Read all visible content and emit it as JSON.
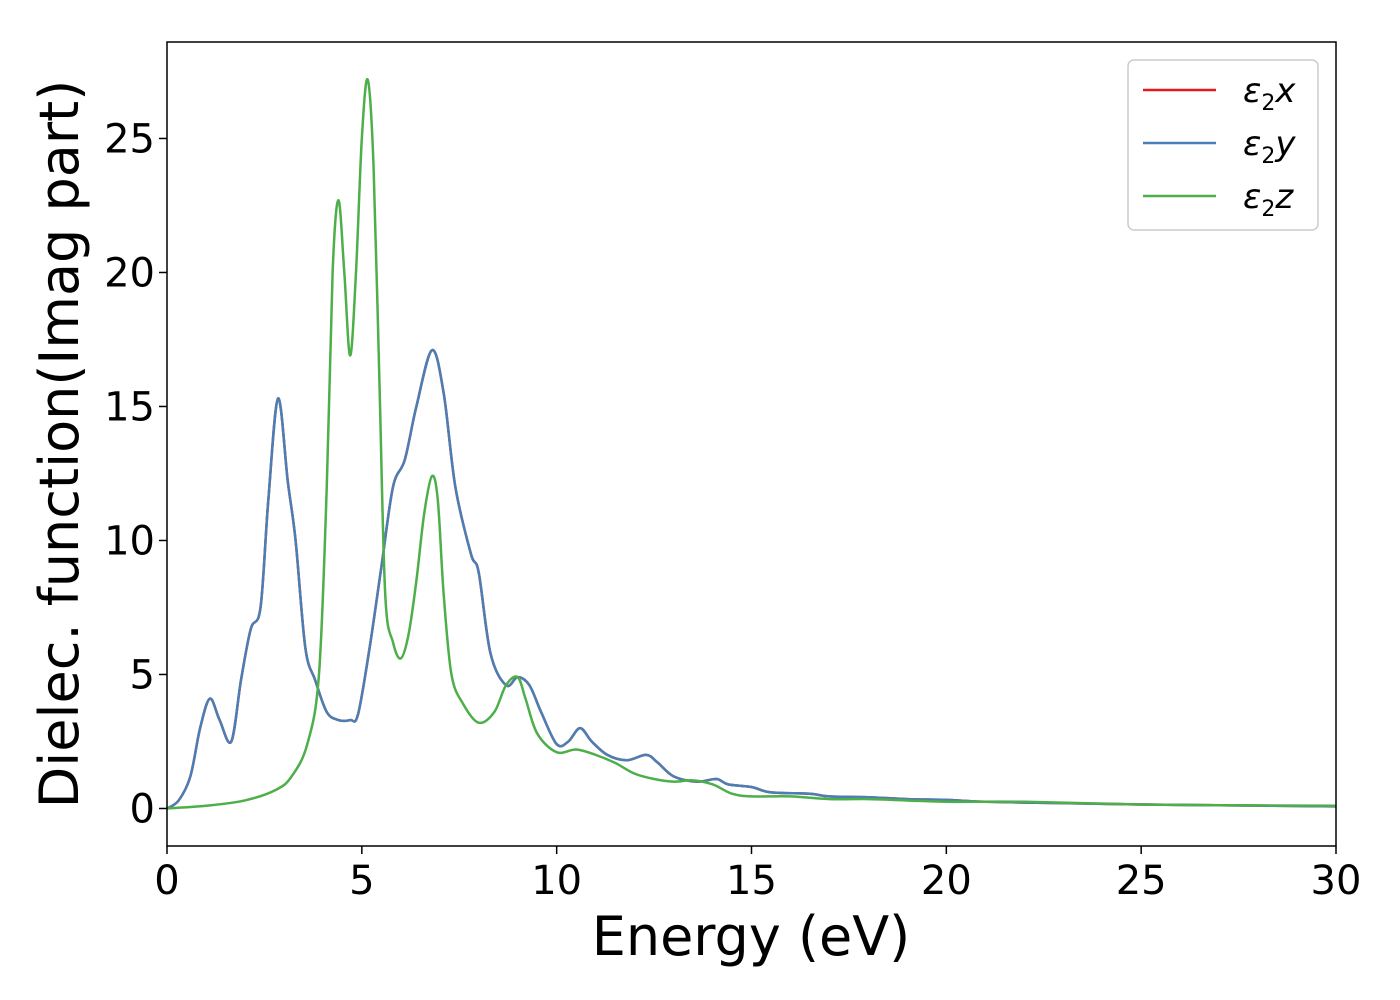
{
  "chart_data": {
    "type": "line",
    "xlabel": "Energy (eV)",
    "ylabel": "Dielec. function(Imag part)",
    "xlim": [
      0,
      30
    ],
    "ylim": [
      -1.4,
      28.6
    ],
    "xticks": [
      0,
      5,
      10,
      15,
      20,
      25,
      30
    ],
    "yticks": [
      0,
      5,
      10,
      15,
      20,
      25
    ],
    "grid": false,
    "legend": "top-right",
    "series": [
      {
        "name": "ε2x",
        "legend_symbol": "ε",
        "legend_sub": "2",
        "legend_suffix": "x",
        "color": "#e41a1c",
        "x": [
          0,
          0.3,
          0.6,
          0.85,
          1.1,
          1.35,
          1.65,
          1.9,
          2.15,
          2.4,
          2.6,
          2.85,
          3.1,
          3.3,
          3.55,
          3.8,
          4.1,
          4.4,
          4.7,
          4.9,
          5.2,
          5.5,
          5.8,
          6.1,
          6.4,
          6.8,
          7.1,
          7.4,
          7.8,
          8.0,
          8.3,
          8.7,
          9.0,
          9.3,
          9.6,
          10.0,
          10.3,
          10.6,
          10.9,
          11.3,
          11.8,
          12.3,
          12.6,
          13.0,
          13.6,
          14.1,
          14.4,
          15.0,
          15.5,
          16.5,
          17.0,
          18.0,
          19.0,
          20.0,
          21.0,
          23.0,
          25.0,
          27.0,
          30.0
        ],
        "y": [
          0.0,
          0.3,
          1.2,
          3.0,
          4.1,
          3.3,
          2.5,
          4.8,
          6.7,
          7.5,
          11.5,
          15.3,
          12.2,
          10.0,
          6.0,
          4.8,
          3.6,
          3.3,
          3.3,
          3.5,
          6.0,
          9.0,
          12.0,
          13.0,
          15.0,
          17.1,
          15.5,
          12.0,
          9.5,
          8.8,
          5.8,
          4.6,
          4.9,
          4.6,
          3.6,
          2.4,
          2.5,
          3.0,
          2.5,
          2.0,
          1.8,
          2.0,
          1.7,
          1.2,
          1.0,
          1.1,
          0.9,
          0.8,
          0.6,
          0.55,
          0.45,
          0.42,
          0.35,
          0.32,
          0.25,
          0.2,
          0.15,
          0.12,
          0.08
        ]
      },
      {
        "name": "ε2y",
        "legend_symbol": "ε",
        "legend_sub": "2",
        "legend_suffix": "y",
        "color": "#4a7fb5",
        "x": [
          0,
          0.3,
          0.6,
          0.85,
          1.1,
          1.35,
          1.65,
          1.9,
          2.15,
          2.4,
          2.6,
          2.85,
          3.1,
          3.3,
          3.55,
          3.8,
          4.1,
          4.4,
          4.7,
          4.9,
          5.2,
          5.5,
          5.8,
          6.1,
          6.4,
          6.8,
          7.1,
          7.4,
          7.8,
          8.0,
          8.3,
          8.7,
          9.0,
          9.3,
          9.6,
          10.0,
          10.3,
          10.6,
          10.9,
          11.3,
          11.8,
          12.3,
          12.6,
          13.0,
          13.6,
          14.1,
          14.4,
          15.0,
          15.5,
          16.5,
          17.0,
          18.0,
          19.0,
          20.0,
          21.0,
          23.0,
          25.0,
          27.0,
          30.0
        ],
        "y": [
          0.0,
          0.3,
          1.2,
          3.0,
          4.1,
          3.3,
          2.5,
          4.8,
          6.7,
          7.5,
          11.5,
          15.3,
          12.2,
          10.0,
          6.0,
          4.8,
          3.6,
          3.3,
          3.3,
          3.5,
          6.0,
          9.0,
          12.0,
          13.0,
          15.0,
          17.1,
          15.5,
          12.0,
          9.5,
          8.8,
          5.8,
          4.6,
          4.9,
          4.6,
          3.6,
          2.4,
          2.5,
          3.0,
          2.5,
          2.0,
          1.8,
          2.0,
          1.7,
          1.2,
          1.0,
          1.1,
          0.9,
          0.8,
          0.6,
          0.55,
          0.45,
          0.42,
          0.35,
          0.32,
          0.25,
          0.2,
          0.15,
          0.12,
          0.08
        ]
      },
      {
        "name": "ε2z",
        "legend_symbol": "ε",
        "legend_sub": "2",
        "legend_suffix": "z",
        "color": "#4daf4a",
        "x": [
          0,
          1.0,
          2.0,
          2.8,
          3.2,
          3.6,
          3.9,
          4.1,
          4.25,
          4.4,
          4.55,
          4.7,
          4.85,
          5.0,
          5.15,
          5.3,
          5.45,
          5.6,
          5.8,
          6.0,
          6.2,
          6.4,
          6.6,
          6.8,
          6.95,
          7.1,
          7.3,
          7.6,
          8.0,
          8.4,
          8.7,
          9.0,
          9.2,
          9.5,
          10.0,
          10.5,
          11.0,
          11.5,
          12.0,
          12.5,
          13.0,
          13.5,
          14.0,
          14.5,
          15.0,
          16.0,
          17.0,
          18.0,
          19.0,
          20.0,
          22.0,
          25.0,
          27.0,
          30.0
        ],
        "y": [
          0.0,
          0.1,
          0.3,
          0.7,
          1.2,
          2.4,
          5.0,
          12.0,
          20.0,
          22.7,
          20.0,
          16.9,
          20.0,
          25.0,
          27.2,
          24.0,
          16.0,
          8.0,
          6.2,
          5.6,
          6.5,
          8.5,
          11.0,
          12.4,
          11.5,
          8.0,
          5.0,
          3.9,
          3.2,
          3.6,
          4.6,
          4.9,
          4.1,
          2.8,
          2.1,
          2.2,
          2.0,
          1.7,
          1.3,
          1.1,
          1.0,
          1.05,
          0.9,
          0.55,
          0.45,
          0.45,
          0.35,
          0.35,
          0.3,
          0.25,
          0.25,
          0.15,
          0.12,
          0.1
        ]
      }
    ]
  }
}
